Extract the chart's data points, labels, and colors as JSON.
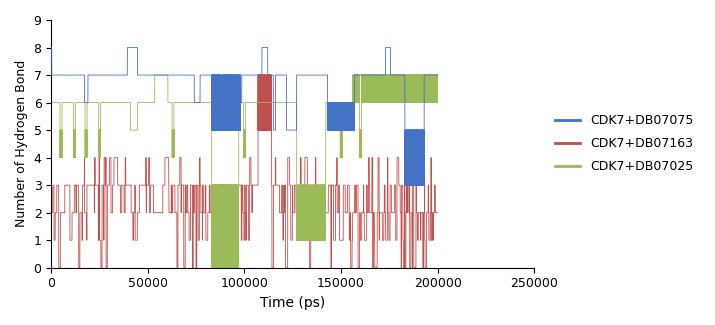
{
  "title": "",
  "xlabel": "Time (ps)",
  "ylabel": "Number of Hydrogen Bond",
  "xlim": [
    0,
    250000
  ],
  "ylim": [
    0,
    9
  ],
  "yticks": [
    0,
    1,
    2,
    3,
    4,
    5,
    6,
    7,
    8,
    9
  ],
  "xticks": [
    0,
    50000,
    100000,
    150000,
    200000,
    250000
  ],
  "legend_labels": [
    "CDK7+DB07075",
    "CDK7+DB07163",
    "CDK7+DB07025"
  ],
  "colors": [
    "#4472C4",
    "#C0504D",
    "#9BBB59"
  ],
  "line_width": 0.6,
  "seed": 42,
  "n_points": 20000,
  "figsize": [
    7.15,
    3.25
  ],
  "dpi": 100
}
